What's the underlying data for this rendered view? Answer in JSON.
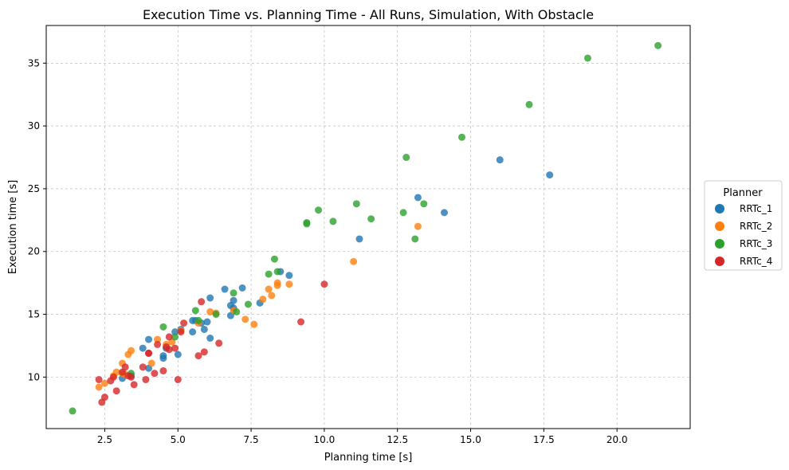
{
  "chart_data": {
    "type": "scatter",
    "title": "Execution Time vs. Planning Time - All Runs, Simulation, With Obstacle",
    "xlabel": "Planning time [s]",
    "ylabel": "Execution time [s]",
    "xlim": [
      0.5,
      22.5
    ],
    "ylim": [
      5.9,
      38.0
    ],
    "xticks": [
      2.5,
      5.0,
      7.5,
      10.0,
      12.5,
      15.0,
      17.5,
      20.0
    ],
    "xtick_labels": [
      "2.5",
      "5.0",
      "7.5",
      "10.0",
      "12.5",
      "15.0",
      "17.5",
      "20.0"
    ],
    "yticks": [
      10,
      15,
      20,
      25,
      30,
      35
    ],
    "ytick_labels": [
      "10",
      "15",
      "20",
      "25",
      "30",
      "35"
    ],
    "grid": true,
    "legend": {
      "title": "Planner",
      "placement": "right-outside"
    },
    "series": [
      {
        "name": "RRTc_1",
        "color": "#1f77b4",
        "points": [
          [
            3.1,
            9.9
          ],
          [
            3.4,
            10.1
          ],
          [
            3.8,
            12.3
          ],
          [
            4.0,
            13.0
          ],
          [
            4.0,
            10.7
          ],
          [
            4.5,
            11.7
          ],
          [
            4.5,
            11.5
          ],
          [
            4.6,
            12.3
          ],
          [
            4.9,
            13.6
          ],
          [
            5.0,
            11.8
          ],
          [
            5.1,
            13.8
          ],
          [
            5.5,
            13.6
          ],
          [
            5.5,
            14.5
          ],
          [
            5.6,
            14.5
          ],
          [
            5.8,
            14.3
          ],
          [
            5.9,
            13.8
          ],
          [
            6.0,
            14.4
          ],
          [
            6.1,
            16.3
          ],
          [
            6.1,
            13.1
          ],
          [
            6.6,
            17.0
          ],
          [
            6.8,
            15.7
          ],
          [
            6.9,
            15.5
          ],
          [
            6.8,
            14.9
          ],
          [
            6.9,
            16.1
          ],
          [
            7.2,
            17.1
          ],
          [
            7.8,
            15.9
          ],
          [
            8.5,
            18.4
          ],
          [
            8.8,
            18.1
          ],
          [
            11.2,
            21.0
          ],
          [
            13.2,
            24.3
          ],
          [
            14.1,
            23.1
          ],
          [
            16.0,
            27.3
          ],
          [
            17.7,
            26.1
          ]
        ]
      },
      {
        "name": "RRTc_2",
        "color": "#ff7f0e",
        "points": [
          [
            2.3,
            9.2
          ],
          [
            2.5,
            9.5
          ],
          [
            2.8,
            10.1
          ],
          [
            2.9,
            10.4
          ],
          [
            3.1,
            10.3
          ],
          [
            3.1,
            11.1
          ],
          [
            3.2,
            10.2
          ],
          [
            3.3,
            11.8
          ],
          [
            3.4,
            12.1
          ],
          [
            4.1,
            11.1
          ],
          [
            4.3,
            13.0
          ],
          [
            4.6,
            12.6
          ],
          [
            4.8,
            12.8
          ],
          [
            5.1,
            13.7
          ],
          [
            5.7,
            14.3
          ],
          [
            6.1,
            15.2
          ],
          [
            6.3,
            15.1
          ],
          [
            6.9,
            15.3
          ],
          [
            7.3,
            14.6
          ],
          [
            7.6,
            14.2
          ],
          [
            7.9,
            16.2
          ],
          [
            8.1,
            17.0
          ],
          [
            8.2,
            16.5
          ],
          [
            8.4,
            17.5
          ],
          [
            8.4,
            17.3
          ],
          [
            8.8,
            17.4
          ],
          [
            11.0,
            19.2
          ],
          [
            13.2,
            22.0
          ]
        ]
      },
      {
        "name": "RRTc_3",
        "color": "#2ca02c",
        "points": [
          [
            1.4,
            7.3
          ],
          [
            3.4,
            10.3
          ],
          [
            4.5,
            14.0
          ],
          [
            4.9,
            13.2
          ],
          [
            5.6,
            15.3
          ],
          [
            5.7,
            14.5
          ],
          [
            6.3,
            15.0
          ],
          [
            6.9,
            16.7
          ],
          [
            7.0,
            15.2
          ],
          [
            7.4,
            15.8
          ],
          [
            8.1,
            18.2
          ],
          [
            8.3,
            19.4
          ],
          [
            8.4,
            18.4
          ],
          [
            9.4,
            22.2
          ],
          [
            9.4,
            22.3
          ],
          [
            9.8,
            23.3
          ],
          [
            10.3,
            22.4
          ],
          [
            11.1,
            23.8
          ],
          [
            11.6,
            22.6
          ],
          [
            12.7,
            23.1
          ],
          [
            12.8,
            27.5
          ],
          [
            13.1,
            21.0
          ],
          [
            13.4,
            23.8
          ],
          [
            14.7,
            29.1
          ],
          [
            17.0,
            31.7
          ],
          [
            19.0,
            35.4
          ],
          [
            21.4,
            36.4
          ]
        ]
      },
      {
        "name": "RRTc_4",
        "color": "#d62728",
        "points": [
          [
            2.3,
            9.8
          ],
          [
            2.4,
            8.0
          ],
          [
            2.5,
            8.4
          ],
          [
            2.7,
            9.7
          ],
          [
            2.8,
            10.0
          ],
          [
            2.9,
            8.9
          ],
          [
            3.1,
            10.4
          ],
          [
            3.2,
            10.8
          ],
          [
            3.3,
            10.1
          ],
          [
            3.4,
            10.0
          ],
          [
            3.5,
            9.4
          ],
          [
            3.8,
            10.8
          ],
          [
            3.9,
            9.8
          ],
          [
            4.0,
            11.9
          ],
          [
            4.0,
            11.9
          ],
          [
            4.2,
            10.3
          ],
          [
            4.3,
            12.6
          ],
          [
            4.5,
            10.5
          ],
          [
            4.6,
            12.4
          ],
          [
            4.7,
            12.2
          ],
          [
            4.7,
            13.2
          ],
          [
            4.9,
            12.3
          ],
          [
            5.0,
            9.8
          ],
          [
            5.1,
            13.6
          ],
          [
            5.2,
            14.3
          ],
          [
            5.7,
            11.7
          ],
          [
            5.8,
            16.0
          ],
          [
            5.9,
            12.0
          ],
          [
            6.4,
            12.7
          ],
          [
            9.2,
            14.4
          ],
          [
            10.0,
            17.4
          ]
        ]
      }
    ]
  }
}
